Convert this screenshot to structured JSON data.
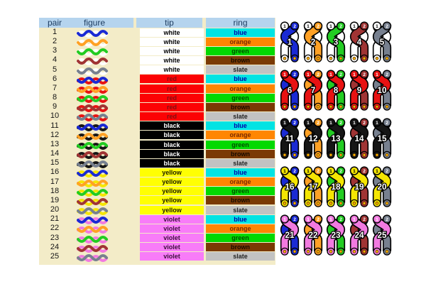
{
  "page": {
    "background": "#ffffff"
  },
  "table": {
    "background": "#f3ecc8",
    "header": {
      "background": "#b5d4ee",
      "text_color": "#1b3a5e",
      "columns": [
        "pair",
        "figure",
        "tip",
        "ring"
      ]
    },
    "rows": [
      {
        "pair": "1",
        "tip": "white",
        "ring": "blue"
      },
      {
        "pair": "2",
        "tip": "white",
        "ring": "orange"
      },
      {
        "pair": "3",
        "tip": "white",
        "ring": "green"
      },
      {
        "pair": "4",
        "tip": "white",
        "ring": "brown"
      },
      {
        "pair": "5",
        "tip": "white",
        "ring": "slate"
      },
      {
        "pair": "6",
        "tip": "red",
        "ring": "blue"
      },
      {
        "pair": "7",
        "tip": "red",
        "ring": "orange"
      },
      {
        "pair": "8",
        "tip": "red",
        "ring": "green"
      },
      {
        "pair": "9",
        "tip": "red",
        "ring": "brown"
      },
      {
        "pair": "10",
        "tip": "red",
        "ring": "slate"
      },
      {
        "pair": "11",
        "tip": "black",
        "ring": "blue"
      },
      {
        "pair": "12",
        "tip": "black",
        "ring": "orange"
      },
      {
        "pair": "13",
        "tip": "black",
        "ring": "green"
      },
      {
        "pair": "14",
        "tip": "black",
        "ring": "brown"
      },
      {
        "pair": "15",
        "tip": "black",
        "ring": "slate"
      },
      {
        "pair": "16",
        "tip": "yellow",
        "ring": "blue"
      },
      {
        "pair": "17",
        "tip": "yellow",
        "ring": "orange"
      },
      {
        "pair": "18",
        "tip": "yellow",
        "ring": "green"
      },
      {
        "pair": "19",
        "tip": "yellow",
        "ring": "brown"
      },
      {
        "pair": "20",
        "tip": "yellow",
        "ring": "slate"
      },
      {
        "pair": "21",
        "tip": "violet",
        "ring": "blue"
      },
      {
        "pair": "22",
        "tip": "violet",
        "ring": "orange"
      },
      {
        "pair": "23",
        "tip": "violet",
        "ring": "green"
      },
      {
        "pair": "24",
        "tip": "violet",
        "ring": "brown"
      },
      {
        "pair": "25",
        "tip": "violet",
        "ring": "slate"
      }
    ]
  },
  "colors": {
    "white": {
      "bg": "#ffffff",
      "text": "#000000",
      "wire": "#ffffff"
    },
    "red": {
      "bg": "#fc0204",
      "text": "#7e1214",
      "wire": "#e81212"
    },
    "black": {
      "bg": "#000000",
      "text": "#ffffff",
      "wire": "#161616"
    },
    "yellow": {
      "bg": "#ffff02",
      "text": "#1c1c00",
      "wire": "#f5e602"
    },
    "violet": {
      "bg": "#f87cf8",
      "text": "#3c103c",
      "wire": "#f27ae0"
    },
    "blue": {
      "bg": "#02e3e3",
      "text": "#0000aa",
      "wire": "#1a2ad4"
    },
    "orange": {
      "bg": "#ff8602",
      "text": "#7a2a00",
      "wire": "#ffa125"
    },
    "green": {
      "bg": "#02d902",
      "text": "#004f00",
      "wire": "#22cc22"
    },
    "brown": {
      "bg": "#7b3a04",
      "text": "#170a00",
      "wire": "#a03434"
    },
    "slate": {
      "bg": "#c2c2c2",
      "text": "#222222",
      "wire": "#77808f"
    }
  },
  "diagram": {
    "conductor_labels": [
      "1",
      "2"
    ],
    "dot_color": "#ffb000"
  }
}
